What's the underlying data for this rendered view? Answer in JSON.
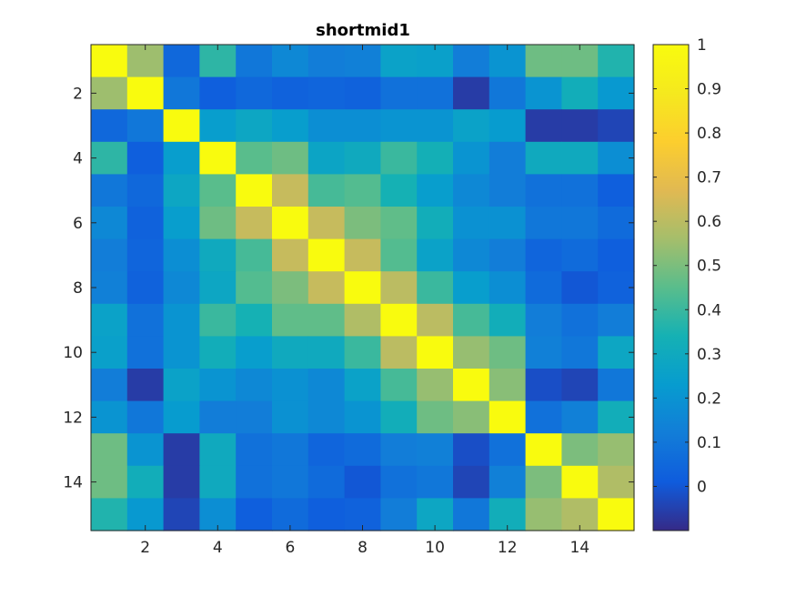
{
  "chart_data": {
    "type": "heatmap",
    "title": "shortmid1",
    "xlabel": "",
    "ylabel": "",
    "x_ticks": [
      "2",
      "4",
      "6",
      "8",
      "10",
      "12",
      "14"
    ],
    "y_ticks": [
      "2",
      "4",
      "6",
      "8",
      "10",
      "12",
      "14"
    ],
    "rows": 15,
    "cols": 15,
    "colormap": "parula",
    "clim": [
      -0.1,
      1.0
    ],
    "colorbar_ticks": [
      "0",
      "0.1",
      "0.2",
      "0.3",
      "0.4",
      "0.5",
      "0.6",
      "0.7",
      "0.8",
      "0.9",
      "1"
    ],
    "colorbar_tick_values": [
      0,
      0.1,
      0.2,
      0.3,
      0.4,
      0.5,
      0.6,
      0.7,
      0.8,
      0.9,
      1
    ],
    "colorbar_placement": "right",
    "grid": false,
    "values": [
      [
        1.0,
        0.55,
        0.05,
        0.38,
        0.1,
        0.16,
        0.12,
        0.13,
        0.26,
        0.25,
        0.12,
        0.2,
        0.48,
        0.48,
        0.36
      ],
      [
        0.55,
        1.0,
        0.1,
        0.02,
        0.05,
        0.03,
        0.04,
        0.03,
        0.08,
        0.08,
        -0.06,
        0.1,
        0.2,
        0.32,
        0.22
      ],
      [
        0.05,
        0.1,
        1.0,
        0.24,
        0.28,
        0.24,
        0.18,
        0.18,
        0.2,
        0.2,
        0.26,
        0.23,
        -0.06,
        -0.06,
        -0.04
      ],
      [
        0.38,
        0.02,
        0.24,
        1.0,
        0.45,
        0.48,
        0.27,
        0.3,
        0.4,
        0.33,
        0.2,
        0.12,
        0.3,
        0.3,
        0.18
      ],
      [
        0.1,
        0.05,
        0.28,
        0.45,
        1.0,
        0.62,
        0.42,
        0.44,
        0.34,
        0.24,
        0.16,
        0.12,
        0.08,
        0.08,
        0.02
      ],
      [
        0.16,
        0.03,
        0.24,
        0.48,
        0.62,
        1.0,
        0.62,
        0.5,
        0.46,
        0.32,
        0.19,
        0.19,
        0.1,
        0.1,
        0.06
      ],
      [
        0.12,
        0.04,
        0.18,
        0.3,
        0.42,
        0.62,
        1.0,
        0.62,
        0.44,
        0.26,
        0.16,
        0.12,
        0.04,
        0.06,
        0.02
      ],
      [
        0.13,
        0.03,
        0.16,
        0.28,
        0.44,
        0.5,
        0.62,
        1.0,
        0.6,
        0.4,
        0.24,
        0.18,
        0.06,
        0.0,
        0.03
      ],
      [
        0.26,
        0.08,
        0.2,
        0.4,
        0.34,
        0.46,
        0.46,
        0.58,
        1.0,
        0.6,
        0.42,
        0.32,
        0.12,
        0.08,
        0.12
      ],
      [
        0.25,
        0.08,
        0.2,
        0.32,
        0.24,
        0.3,
        0.3,
        0.4,
        0.6,
        1.0,
        0.54,
        0.48,
        0.13,
        0.1,
        0.28
      ],
      [
        0.12,
        -0.06,
        0.26,
        0.2,
        0.16,
        0.19,
        0.16,
        0.26,
        0.42,
        0.54,
        1.0,
        0.52,
        -0.02,
        -0.04,
        0.1
      ],
      [
        0.2,
        0.1,
        0.23,
        0.12,
        0.12,
        0.19,
        0.16,
        0.2,
        0.32,
        0.48,
        0.52,
        1.0,
        0.08,
        0.13,
        0.32
      ],
      [
        0.48,
        0.2,
        -0.06,
        0.3,
        0.08,
        0.1,
        0.04,
        0.06,
        0.12,
        0.13,
        -0.02,
        0.08,
        1.0,
        0.5,
        0.54
      ],
      [
        0.48,
        0.32,
        -0.06,
        0.3,
        0.08,
        0.1,
        0.06,
        0.0,
        0.08,
        0.1,
        -0.04,
        0.13,
        0.5,
        1.0,
        0.58
      ],
      [
        0.36,
        0.22,
        -0.04,
        0.18,
        0.02,
        0.06,
        0.02,
        0.03,
        0.12,
        0.28,
        0.1,
        0.32,
        0.54,
        0.58,
        1.0
      ]
    ]
  }
}
